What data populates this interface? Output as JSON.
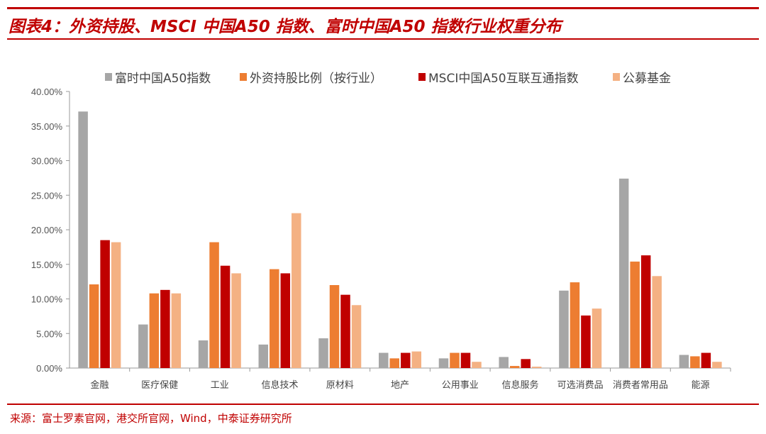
{
  "title": "图表4：外资持股、MSCI 中国A50 指数、富时中国A50 指数行业权重分布",
  "source": "来源：富士罗素官网，港交所官网，Wind，中泰证券研究所",
  "chart_data": {
    "type": "bar",
    "categories": [
      "金融",
      "医疗保健",
      "工业",
      "信息技术",
      "原材料",
      "地产",
      "公用事业",
      "信息服务",
      "可选消费品",
      "消费者常用品",
      "能源"
    ],
    "ylim": [
      0,
      40
    ],
    "yticks": [
      "0.00%",
      "5.00%",
      "10.00%",
      "15.00%",
      "20.00%",
      "25.00%",
      "30.00%",
      "35.00%",
      "40.00%"
    ],
    "legend_position": "top",
    "series": [
      {
        "name": "富时中国A50指数",
        "color": "#a6a6a6",
        "values": [
          37.1,
          6.3,
          4.0,
          3.4,
          4.3,
          2.2,
          1.4,
          1.6,
          11.2,
          27.4,
          1.9
        ]
      },
      {
        "name": "外资持股比例（按行业）",
        "color": "#ed7d31",
        "values": [
          12.1,
          10.8,
          18.2,
          14.3,
          12.0,
          1.4,
          2.2,
          0.3,
          12.4,
          15.4,
          1.7
        ]
      },
      {
        "name": "MSCI中国A50互联互通指数",
        "color": "#c00000",
        "values": [
          18.5,
          11.3,
          14.8,
          13.7,
          10.6,
          2.2,
          2.2,
          1.3,
          7.6,
          16.3,
          2.2
        ]
      },
      {
        "name": "公募基金",
        "color": "#f4b183",
        "values": [
          18.2,
          10.8,
          13.7,
          22.4,
          9.1,
          2.4,
          0.9,
          0.2,
          8.6,
          13.3,
          0.9
        ]
      }
    ]
  }
}
